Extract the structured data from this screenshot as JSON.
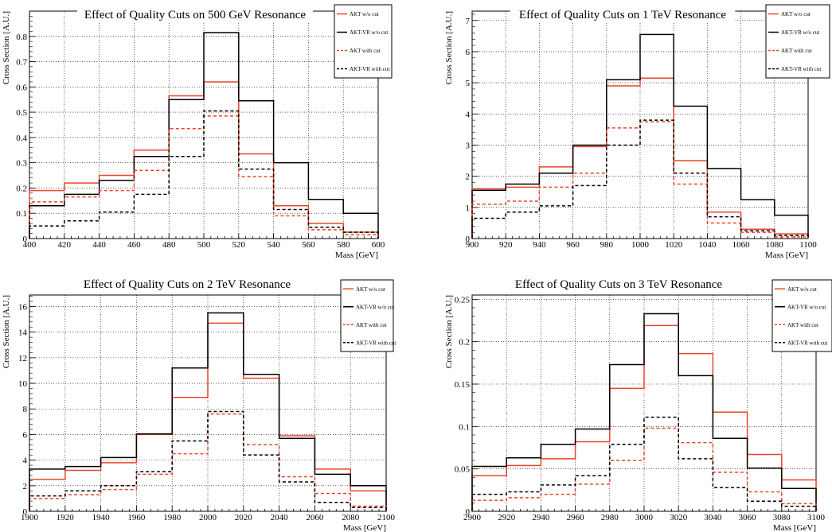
{
  "chart_data": [
    {
      "type": "step",
      "title": "Effect of Quality Cuts on 500 GeV Resonance",
      "xlabel": "Mass [GeV]",
      "ylabel": "Cross Section [A.U.]",
      "xlim": [
        400,
        600
      ],
      "ylim": [
        0,
        0.9
      ],
      "xticks": [
        400,
        420,
        440,
        460,
        480,
        500,
        520,
        540,
        560,
        580,
        600
      ],
      "xtick_labels": [
        "400",
        "420",
        "440",
        "460",
        "480",
        "500",
        "520",
        "540",
        "560",
        "580",
        "600"
      ],
      "yticks": [
        0,
        0.1,
        0.2,
        0.3,
        0.4,
        0.5,
        0.6,
        0.7,
        0.8
      ],
      "ytick_labels": [
        "0",
        "0.1",
        "0.2",
        "0.3",
        "0.4",
        "0.5",
        "0.6",
        "0.7",
        "0.8"
      ],
      "bin_edges": [
        400,
        420,
        440,
        460,
        480,
        500,
        520,
        540,
        560,
        580,
        600
      ],
      "grid": true,
      "legend_position": "top-right",
      "series": [
        {
          "name": "AKT w/o cut",
          "color": "#e8452a",
          "dashed": false,
          "values": [
            0.19,
            0.22,
            0.25,
            0.35,
            0.565,
            0.62,
            0.335,
            0.13,
            0.06,
            0.025
          ]
        },
        {
          "name": "AKT-VR w/o cut",
          "color": "#000000",
          "dashed": false,
          "values": [
            0.13,
            0.175,
            0.23,
            0.325,
            0.55,
            0.815,
            0.545,
            0.3,
            0.155,
            0.1
          ]
        },
        {
          "name": "AKT with cut",
          "color": "#e8452a",
          "dashed": true,
          "values": [
            0.145,
            0.165,
            0.19,
            0.27,
            0.435,
            0.485,
            0.245,
            0.09,
            0.035,
            0.015
          ]
        },
        {
          "name": "AKT-VR with cut",
          "color": "#000000",
          "dashed": true,
          "values": [
            0.05,
            0.07,
            0.105,
            0.175,
            0.325,
            0.505,
            0.275,
            0.115,
            0.045,
            0.025
          ]
        }
      ]
    },
    {
      "type": "step",
      "title": "Effect of Quality Cuts on 1 TeV Resonance",
      "xlabel": "Mass [GeV]",
      "ylabel": "Cross Section [A.U.]",
      "xlim": [
        900,
        1100
      ],
      "ylim": [
        0,
        7.3
      ],
      "xticks": [
        900,
        920,
        940,
        960,
        980,
        1000,
        1020,
        1040,
        1060,
        1080,
        1100
      ],
      "xtick_labels": [
        "900",
        "920",
        "940",
        "960",
        "980",
        "1000",
        "1020",
        "1040",
        "1060",
        "1080",
        "1100"
      ],
      "yticks": [
        0,
        1,
        2,
        3,
        4,
        5,
        6,
        7
      ],
      "ytick_labels": [
        "0",
        "1",
        "2",
        "3",
        "4",
        "5",
        "6",
        "7"
      ],
      "bin_edges": [
        900,
        920,
        940,
        960,
        980,
        1000,
        1020,
        1040,
        1060,
        1080,
        1100
      ],
      "grid": true,
      "legend_position": "top-right",
      "series": [
        {
          "name": "AKT w/o cut",
          "color": "#e8452a",
          "dashed": false,
          "values": [
            1.6,
            1.65,
            2.3,
            2.95,
            4.9,
            5.15,
            2.5,
            0.85,
            0.3,
            0.15
          ]
        },
        {
          "name": "AKT-VR w/o cut",
          "color": "#000000",
          "dashed": false,
          "values": [
            1.55,
            1.75,
            2.1,
            3.0,
            5.1,
            6.55,
            4.25,
            2.25,
            1.25,
            0.75
          ]
        },
        {
          "name": "AKT with cut",
          "color": "#e8452a",
          "dashed": true,
          "values": [
            1.1,
            1.2,
            1.65,
            2.1,
            3.55,
            3.75,
            1.75,
            0.5,
            0.2,
            0.05
          ]
        },
        {
          "name": "AKT-VR with cut",
          "color": "#000000",
          "dashed": true,
          "values": [
            0.65,
            0.85,
            1.05,
            1.7,
            3.0,
            3.8,
            2.1,
            0.7,
            0.25,
            0.1
          ]
        }
      ]
    },
    {
      "type": "step",
      "title": "Effect of Quality Cuts on 2 TeV Resonance",
      "xlabel": "Mass [GeV]",
      "ylabel": "Cross Section [A.U.]",
      "xlim": [
        1900,
        2100
      ],
      "ylim": [
        0,
        16.9
      ],
      "xticks": [
        1900,
        1920,
        1940,
        1960,
        1980,
        2000,
        2020,
        2040,
        2060,
        2080,
        2100
      ],
      "xtick_labels": [
        "1900",
        "1920",
        "1940",
        "1960",
        "1980",
        "2000",
        "2020",
        "2040",
        "2060",
        "2080",
        "2100"
      ],
      "yticks": [
        0,
        2,
        4,
        6,
        8,
        10,
        12,
        14,
        16
      ],
      "ytick_labels": [
        "0",
        "2",
        "4",
        "6",
        "8",
        "10",
        "12",
        "14",
        "16"
      ],
      "bin_edges": [
        1900,
        1920,
        1940,
        1960,
        1980,
        2000,
        2020,
        2040,
        2060,
        2080,
        2100
      ],
      "grid": true,
      "legend_position": "top-right",
      "series": [
        {
          "name": "AKT w/o cut",
          "color": "#e8452a",
          "dashed": false,
          "values": [
            2.5,
            3.2,
            3.8,
            6.0,
            8.9,
            14.7,
            10.4,
            5.9,
            3.3,
            1.6
          ]
        },
        {
          "name": "AKT-VR w/o cut",
          "color": "#000000",
          "dashed": false,
          "values": [
            3.3,
            3.5,
            4.2,
            6.05,
            11.2,
            15.5,
            10.7,
            5.7,
            2.9,
            2.0
          ]
        },
        {
          "name": "AKT with cut",
          "color": "#e8452a",
          "dashed": true,
          "values": [
            1.0,
            1.3,
            1.7,
            2.9,
            4.5,
            7.6,
            5.2,
            2.7,
            1.4,
            0.4
          ]
        },
        {
          "name": "AKT-VR with cut",
          "color": "#000000",
          "dashed": true,
          "values": [
            1.2,
            1.6,
            2.0,
            3.1,
            5.5,
            7.8,
            4.4,
            2.3,
            0.7,
            0.3
          ]
        }
      ]
    },
    {
      "type": "step",
      "title": "Effect of Quality Cuts on 3 TeV Resonance",
      "xlabel": "Mass [GeV]",
      "ylabel": "Cross Section [A.U.]",
      "xlim": [
        2900,
        3100
      ],
      "ylim": [
        0,
        0.255
      ],
      "xticks": [
        2900,
        2920,
        2940,
        2960,
        2980,
        3000,
        3020,
        3040,
        3060,
        3080,
        3100
      ],
      "xtick_labels": [
        "2900",
        "2920",
        "2940",
        "2960",
        "2980",
        "3000",
        "3020",
        "3040",
        "3060",
        "3080",
        "3100"
      ],
      "yticks": [
        0,
        0.05,
        0.1,
        0.15,
        0.2,
        0.25
      ],
      "ytick_labels": [
        "0",
        "0.05",
        "0.1",
        "0.15",
        "0.2",
        "0.25"
      ],
      "bin_edges": [
        2900,
        2920,
        2940,
        2960,
        2980,
        3000,
        3020,
        3040,
        3060,
        3080,
        3100
      ],
      "grid": true,
      "legend_position": "top-right",
      "series": [
        {
          "name": "AKT w/o cut",
          "color": "#e8452a",
          "dashed": false,
          "values": [
            0.042,
            0.054,
            0.062,
            0.082,
            0.145,
            0.219,
            0.186,
            0.117,
            0.067,
            0.037
          ]
        },
        {
          "name": "AKT-VR w/o cut",
          "color": "#000000",
          "dashed": false,
          "values": [
            0.053,
            0.063,
            0.079,
            0.097,
            0.173,
            0.233,
            0.16,
            0.086,
            0.051,
            0.027
          ]
        },
        {
          "name": "AKT with cut",
          "color": "#e8452a",
          "dashed": true,
          "values": [
            0.013,
            0.016,
            0.02,
            0.032,
            0.06,
            0.098,
            0.081,
            0.046,
            0.023,
            0.009
          ]
        },
        {
          "name": "AKT-VR with cut",
          "color": "#000000",
          "dashed": true,
          "values": [
            0.02,
            0.023,
            0.031,
            0.042,
            0.079,
            0.111,
            0.062,
            0.028,
            0.012,
            0.006
          ]
        }
      ]
    }
  ]
}
